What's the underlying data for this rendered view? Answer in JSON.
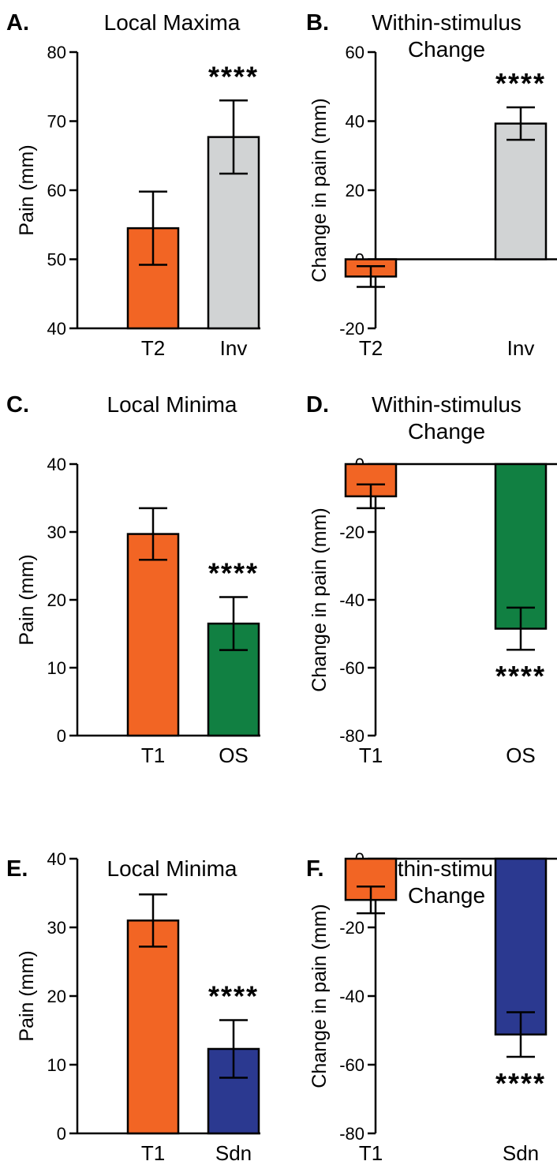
{
  "chart_data": [
    {
      "panel": "A.",
      "type": "bar",
      "title": "Local Maxima",
      "ylabel": "Pain (mm)",
      "ylim": [
        40,
        80
      ],
      "yticks": [
        "40",
        "50",
        "60",
        "70",
        "80"
      ],
      "categories": [
        "T2",
        "Inv"
      ],
      "values": [
        54.5,
        67.7
      ],
      "errors": [
        5.3,
        5.3
      ],
      "colors": [
        "#f26524",
        "#d1d3d4"
      ],
      "annotations": [
        {
          "category": "Inv",
          "text": "****",
          "position": "above"
        }
      ]
    },
    {
      "panel": "B.",
      "type": "bar",
      "title": "Within-stimulus\nChange",
      "ylabel": "Change in pain (mm)",
      "ylim": [
        -20,
        60
      ],
      "yticks": [
        "-20",
        "0",
        "20",
        "40",
        "60"
      ],
      "categories": [
        "T2",
        "Inv"
      ],
      "values": [
        -5,
        39.3
      ],
      "errors": [
        3,
        4.7
      ],
      "colors": [
        "#f26524",
        "#d1d3d4"
      ],
      "annotations": [
        {
          "category": "Inv",
          "text": "****",
          "position": "above"
        }
      ]
    },
    {
      "panel": "C.",
      "type": "bar",
      "title": "Local Minima",
      "ylabel": "Pain (mm)",
      "ylim": [
        0,
        40
      ],
      "yticks": [
        "0",
        "10",
        "20",
        "30",
        "40"
      ],
      "categories": [
        "T1",
        "OS"
      ],
      "values": [
        29.7,
        16.5
      ],
      "errors": [
        3.8,
        3.9
      ],
      "colors": [
        "#f26524",
        "#118042"
      ],
      "annotations": [
        {
          "category": "OS",
          "text": "****",
          "position": "above"
        }
      ]
    },
    {
      "panel": "D.",
      "type": "bar",
      "title": "Within-stimulus\nChange",
      "ylabel": "Change in pain (mm)",
      "ylim": [
        -80,
        0
      ],
      "yticks": [
        "-80",
        "-60",
        "-40",
        "-20",
        "0"
      ],
      "categories": [
        "T1",
        "OS"
      ],
      "values": [
        -9.5,
        -48.5
      ],
      "errors": [
        3.5,
        6.2
      ],
      "colors": [
        "#f26524",
        "#118042"
      ],
      "annotations": [
        {
          "category": "OS",
          "text": "****",
          "position": "below"
        }
      ]
    },
    {
      "panel": "E.",
      "type": "bar",
      "title": "Local Minima",
      "ylabel": "Pain (mm)",
      "ylim": [
        0,
        40
      ],
      "yticks": [
        "0",
        "10",
        "20",
        "30",
        "40"
      ],
      "categories": [
        "T1",
        "Sdn"
      ],
      "values": [
        31,
        12.3
      ],
      "errors": [
        3.8,
        4.2
      ],
      "colors": [
        "#f26524",
        "#2b3990"
      ],
      "annotations": [
        {
          "category": "Sdn",
          "text": "****",
          "position": "above"
        }
      ]
    },
    {
      "panel": "F.",
      "type": "bar",
      "title": "Within-stimulus\nChange",
      "ylabel": "Change in pain (mm)",
      "ylim": [
        -80,
        0
      ],
      "yticks": [
        "-80",
        "-60",
        "-40",
        "-20",
        "0"
      ],
      "categories": [
        "T1",
        "Sdn"
      ],
      "values": [
        -12,
        -51.2
      ],
      "errors": [
        3.9,
        6.5
      ],
      "colors": [
        "#f26524",
        "#2b3990"
      ],
      "annotations": [
        {
          "category": "Sdn",
          "text": "****",
          "position": "below"
        }
      ]
    }
  ]
}
